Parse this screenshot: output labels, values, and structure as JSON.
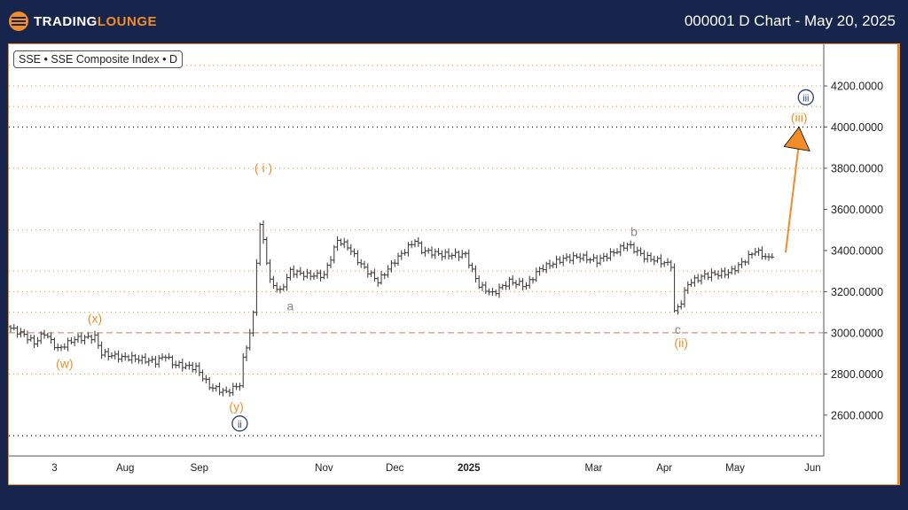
{
  "header": {
    "logo_text_white": "TRADING",
    "logo_text_orange": "LOUNGE",
    "title": "000001 D Chart - May 20, 2025"
  },
  "symbol_label": "SSE • SSE Composite Index • D",
  "chart_data": {
    "type": "ohlc",
    "title": "000001 D Chart - May 20, 2025",
    "ylim": [
      2450,
      4400
    ],
    "y_ticks": [
      "4200.0000",
      "4000.0000",
      "3800.0000",
      "3600.0000",
      "3400.0000",
      "3200.0000",
      "3000.0000",
      "2800.0000",
      "2600.0000"
    ],
    "y_tick_values": [
      4200,
      4000,
      3800,
      3600,
      3400,
      3200,
      3000,
      2800,
      2600
    ],
    "x_ticks": [
      {
        "label": "3",
        "bar": 13
      },
      {
        "label": "Aug",
        "bar": 34
      },
      {
        "label": "Sep",
        "bar": 56
      },
      {
        "label": "Nov",
        "bar": 93
      },
      {
        "label": "Dec",
        "bar": 114
      },
      {
        "label": "2025",
        "bar": 136
      },
      {
        "label": "Mar",
        "bar": 173
      },
      {
        "label": "Apr",
        "bar": 194
      },
      {
        "label": "May",
        "bar": 215
      },
      {
        "label": "Jun",
        "bar": 238
      }
    ],
    "orange_levels": [
      4300,
      4200,
      4100,
      3800,
      3500,
      3300,
      3200,
      3100,
      2800
    ],
    "black_levels": [
      4000,
      2500
    ],
    "red_dashed_level": 3000,
    "price_waypoints": [
      [
        0,
        3030
      ],
      [
        5,
        2990
      ],
      [
        8,
        2950
      ],
      [
        11,
        3000
      ],
      [
        15,
        2920
      ],
      [
        20,
        2970
      ],
      [
        26,
        2980
      ],
      [
        28,
        2900
      ],
      [
        34,
        2880
      ],
      [
        36,
        2880
      ],
      [
        44,
        2860
      ],
      [
        47,
        2890
      ],
      [
        49,
        2850
      ],
      [
        56,
        2830
      ],
      [
        60,
        2740
      ],
      [
        65,
        2710
      ],
      [
        69,
        2750
      ],
      [
        70,
        2870
      ],
      [
        72,
        3000
      ],
      [
        73,
        3090
      ],
      [
        74,
        3350
      ],
      [
        75,
        3520
      ],
      [
        76,
        3450
      ],
      [
        78,
        3250
      ],
      [
        81,
        3200
      ],
      [
        84,
        3300
      ],
      [
        89,
        3280
      ],
      [
        94,
        3280
      ],
      [
        98,
        3450
      ],
      [
        101,
        3420
      ],
      [
        105,
        3330
      ],
      [
        110,
        3250
      ],
      [
        115,
        3350
      ],
      [
        121,
        3450
      ],
      [
        123,
        3400
      ],
      [
        129,
        3380
      ],
      [
        136,
        3380
      ],
      [
        138,
        3300
      ],
      [
        140,
        3230
      ],
      [
        144,
        3190
      ],
      [
        149,
        3250
      ],
      [
        154,
        3230
      ],
      [
        158,
        3310
      ],
      [
        165,
        3360
      ],
      [
        170,
        3370
      ],
      [
        175,
        3350
      ],
      [
        181,
        3400
      ],
      [
        184,
        3430
      ],
      [
        189,
        3370
      ],
      [
        197,
        3330
      ],
      [
        198,
        3100
      ],
      [
        200,
        3150
      ],
      [
        202,
        3240
      ],
      [
        207,
        3280
      ],
      [
        213,
        3290
      ],
      [
        215,
        3300
      ],
      [
        218,
        3340
      ],
      [
        222,
        3400
      ],
      [
        226,
        3360
      ],
      [
        227,
        3380
      ]
    ],
    "wave_labels": [
      {
        "text": "( i )",
        "bar": 75,
        "price": 3780,
        "color": "#f28c28"
      },
      {
        "text": "a",
        "bar": 83,
        "price": 3110,
        "color": "#888888"
      },
      {
        "text": "b",
        "bar": 185,
        "price": 3470,
        "color": "#888888"
      },
      {
        "text": "c",
        "bar": 198,
        "price": 2995,
        "color": "#888888"
      },
      {
        "text": "(ii)",
        "bar": 199,
        "price": 2930,
        "color": "#f28c28"
      },
      {
        "text": "(x)",
        "bar": 25,
        "price": 3050,
        "color": "#f28c28"
      },
      {
        "text": "(w)",
        "bar": 16,
        "price": 2830,
        "color": "#f28c28"
      },
      {
        "text": "(y)",
        "bar": 67,
        "price": 2620,
        "color": "#f28c28"
      },
      {
        "text": "ii",
        "bar": 68,
        "price": 2540,
        "color": "#2c3e6b",
        "circled": true
      },
      {
        "text": "iii",
        "bar": 236,
        "price": 4125,
        "color": "#2c3e6b",
        "circled": true
      },
      {
        "text": "(iii)",
        "bar": 234,
        "price": 4025,
        "color": "#f28c28"
      }
    ],
    "projection_arrow": {
      "from": {
        "bar": 230,
        "price": 3390
      },
      "to": {
        "bar": 234,
        "price": 4000
      },
      "color": "#f28c28"
    }
  }
}
